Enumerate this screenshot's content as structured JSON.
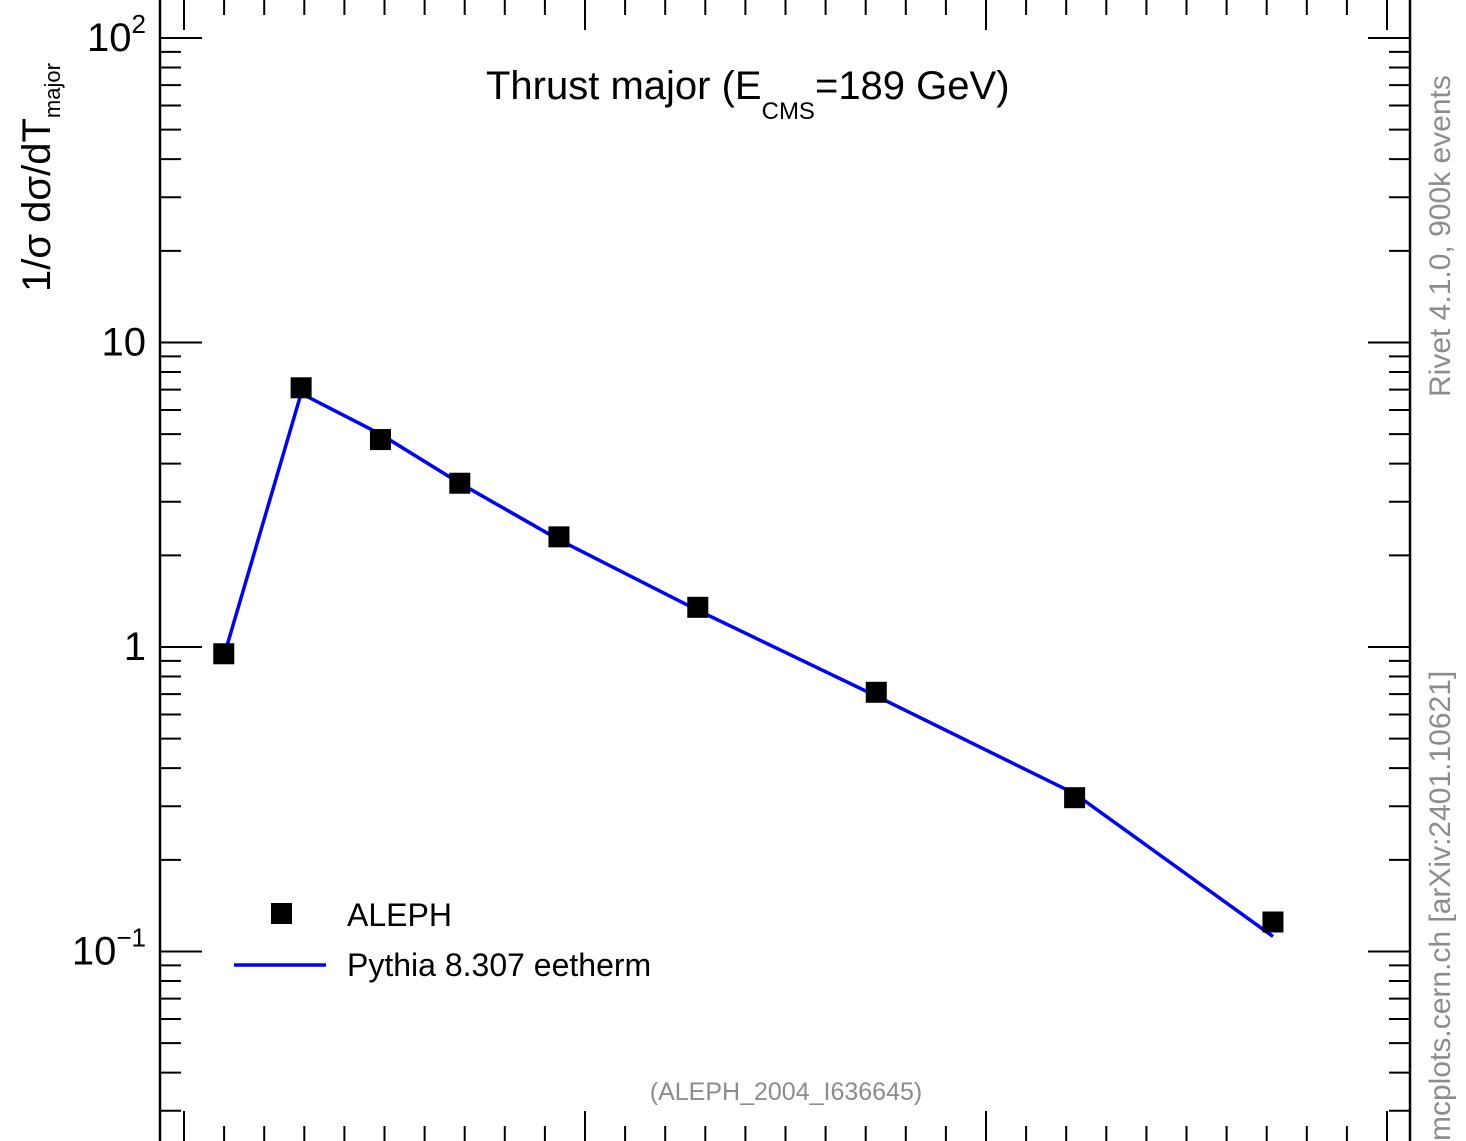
{
  "chart_data": {
    "type": "line",
    "title": "Thrust major (E",
    "title_sub": "CMS",
    "title_tail": "=189 GeV)",
    "ylabel_main": "1/σ  dσ/dT",
    "ylabel_sub": "major",
    "y_scale": "log",
    "ylim": [
      0.025,
      120
    ],
    "xlim": [
      0.0,
      0.6
    ],
    "y_tick_labels": [
      {
        "value": 100,
        "base": "10",
        "exp": "2"
      },
      {
        "value": 10,
        "base": "10",
        "exp": ""
      },
      {
        "value": 1,
        "base": "1",
        "exp": ""
      },
      {
        "value": 0.1,
        "base": "10",
        "exp": "−1"
      }
    ],
    "legend_position": "bottom-left",
    "series": [
      {
        "name": "ALEPH",
        "style": "markers",
        "color": "#000000",
        "x": [
          0.014,
          0.053,
          0.093,
          0.133,
          0.183,
          0.253,
          0.343,
          0.443,
          0.543
        ],
        "y": [
          0.95,
          7.1,
          4.8,
          3.45,
          2.3,
          1.35,
          0.71,
          0.32,
          0.125
        ]
      },
      {
        "name": "Pythia 8.307 eetherm",
        "style": "line",
        "color": "#0000ff",
        "x": [
          0.014,
          0.053,
          0.093,
          0.133,
          0.183,
          0.253,
          0.343,
          0.443,
          0.543
        ],
        "y": [
          0.93,
          6.8,
          5.0,
          3.45,
          2.25,
          1.32,
          0.69,
          0.33,
          0.112
        ]
      }
    ],
    "annotations": {
      "analysis": "(ALEPH_2004_I636645)",
      "rivet_info": "Rivet 4.1.0,  900k events",
      "site_info": "mcplots.cern.ch [arXiv:2401.10621]"
    }
  }
}
